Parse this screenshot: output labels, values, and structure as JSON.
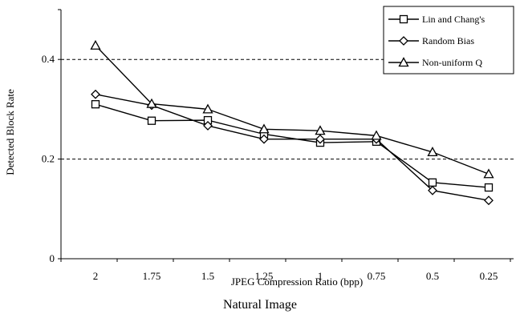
{
  "caption": "Natural Image",
  "chart_data": {
    "type": "line",
    "title": "",
    "xlabel": "JPEG Compression Ratio (bpp)",
    "ylabel": "Detected Block Rate",
    "categories": [
      "2",
      "1.75",
      "1.5",
      "1.25",
      "1",
      "0.75",
      "0.5",
      "0.25"
    ],
    "ylim": [
      0,
      0.5
    ],
    "yticks": [
      0,
      0.2,
      0.4
    ],
    "ytick_labels": [
      "0",
      "0.2",
      "0.4"
    ],
    "grid": "dashed horizontal lines at 0.2 and 0.4",
    "legend_position": "top-right",
    "series": [
      {
        "name": "Lin and Chang's",
        "marker": "square",
        "values": [
          0.31,
          0.277,
          0.278,
          0.25,
          0.233,
          0.235,
          0.153,
          0.143
        ]
      },
      {
        "name": "Random Bias",
        "marker": "diamond",
        "values": [
          0.33,
          0.308,
          0.267,
          0.24,
          0.24,
          0.24,
          0.137,
          0.117
        ]
      },
      {
        "name": "Non-uniform Q",
        "marker": "triangle",
        "values": [
          0.428,
          0.311,
          0.3,
          0.26,
          0.257,
          0.247,
          0.214,
          0.17
        ]
      }
    ]
  }
}
